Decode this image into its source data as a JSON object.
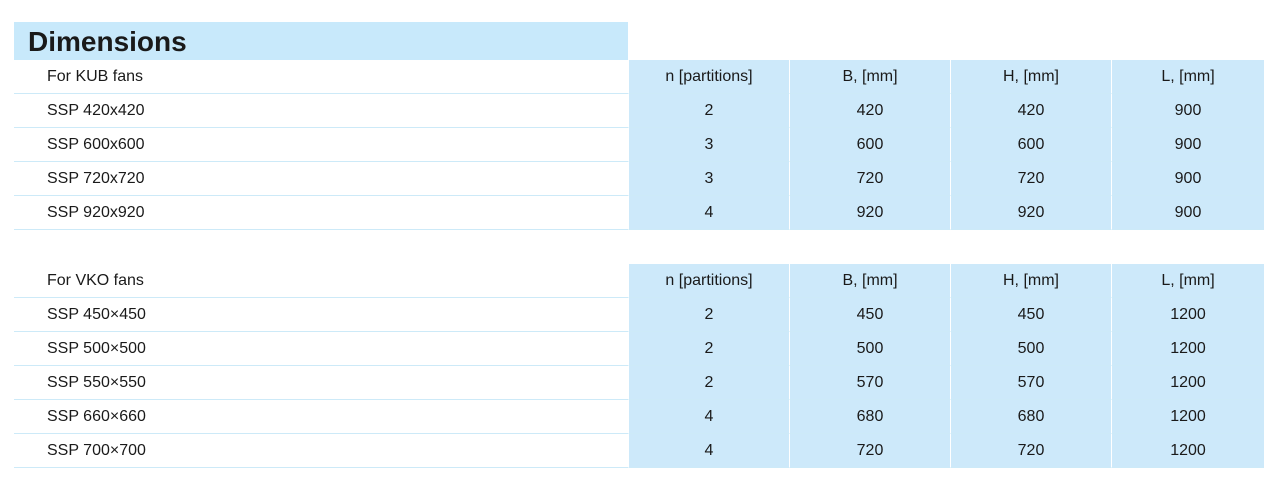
{
  "title": "Dimensions",
  "tables": [
    {
      "header": [
        "For KUB fans",
        "n [partitions]",
        "B, [mm]",
        "H, [mm]",
        "L, [mm]"
      ],
      "rows": [
        [
          "SSP 420x420",
          2,
          420,
          420,
          900
        ],
        [
          "SSP 600x600",
          3,
          600,
          600,
          900
        ],
        [
          "SSP 720x720",
          3,
          720,
          720,
          900
        ],
        [
          "SSP 920x920",
          4,
          920,
          920,
          900
        ]
      ]
    },
    {
      "header": [
        "For VKO fans",
        "n [partitions]",
        "B, [mm]",
        "H, [mm]",
        "L, [mm]"
      ],
      "rows": [
        [
          "SSP 450×450",
          2,
          450,
          450,
          1200
        ],
        [
          "SSP 500×500",
          2,
          500,
          500,
          1200
        ],
        [
          "SSP 550×550",
          2,
          570,
          570,
          1200
        ],
        [
          "SSP 660×660",
          4,
          680,
          680,
          1200
        ],
        [
          "SSP 700×700",
          4,
          720,
          720,
          1200
        ]
      ]
    }
  ]
}
